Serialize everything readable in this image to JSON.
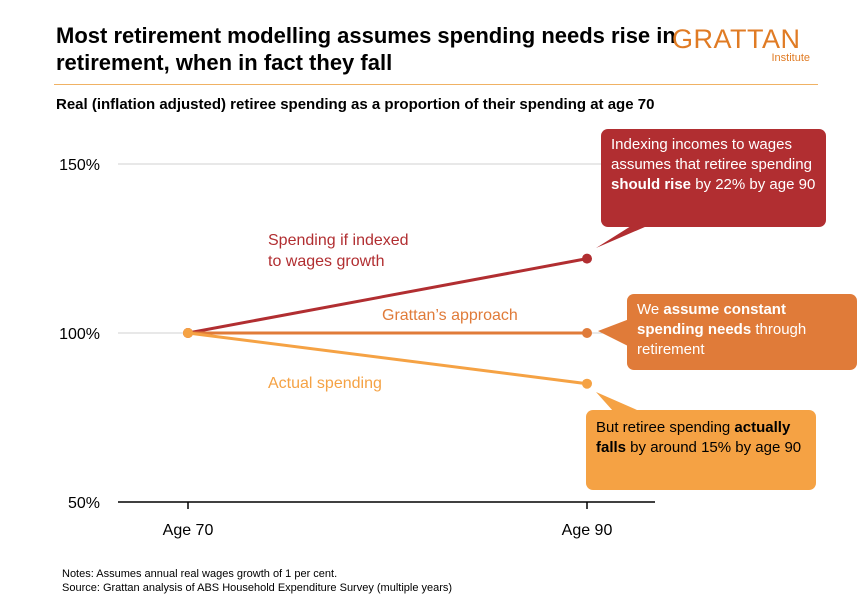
{
  "title": "Most retirement modelling assumes spending needs rise in retirement, when in fact they fall",
  "logo": {
    "name": "GRATTAN",
    "sub": "Institute"
  },
  "subtitle": "Real (inflation adjusted) retiree spending as a proportion of their spending at age 70",
  "chart_data": {
    "type": "line",
    "categories": [
      "Age 70",
      "Age 90"
    ],
    "ylim": [
      50,
      150
    ],
    "yticks": [
      "50%",
      "100%",
      "150%"
    ],
    "ytick_values": [
      50,
      100,
      150
    ],
    "grid": true,
    "series": [
      {
        "name": "Spending if indexed to wages growth",
        "label_lines": [
          "Spending if indexed",
          "to wages growth"
        ],
        "values": [
          100,
          122
        ],
        "color": "#b12e31"
      },
      {
        "name": "Grattan’s approach",
        "label_lines": [
          "Grattan’s approach"
        ],
        "values": [
          100,
          100
        ],
        "color": "#e07b39"
      },
      {
        "name": "Actual spending",
        "label_lines": [
          "Actual spending"
        ],
        "values": [
          100,
          85
        ],
        "color": "#f5a244"
      }
    ]
  },
  "callouts": {
    "wages": {
      "p1": "Indexing incomes to wages assumes that retiree spending ",
      "b1": "should rise",
      "p2": " by 22% by age 90",
      "color": "#b12e31"
    },
    "grattan": {
      "p1": "We ",
      "b1": "assume constant spending needs",
      "p2": " through retirement",
      "color": "#e07b39"
    },
    "actual": {
      "p1": "But retiree spending ",
      "b1": "actually falls",
      "p2": " by around 15% by age 90",
      "color": "#f5a244"
    }
  },
  "notes": [
    "Notes: Assumes annual real wages growth of 1 per cent.",
    "Source: Grattan analysis of ABS Household Expenditure Survey (multiple years)"
  ]
}
